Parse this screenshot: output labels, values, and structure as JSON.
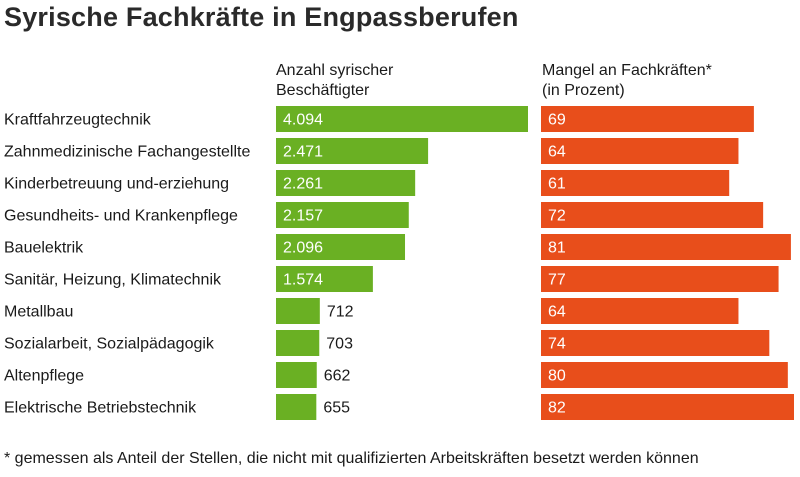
{
  "title": "Syrische Fachkräfte in Engpassberufen",
  "footnote": "* gemessen als Anteil der Stellen, die nicht mit qualifizierten Arbeitskräften besetzt werden können",
  "colors": {
    "left": "#6ab023",
    "right": "#e84e1b"
  },
  "chart_data": {
    "type": "bar",
    "categories": [
      "Kraftfahrzeugtechnik",
      "Zahnmedizinische Fachangestellte",
      "Kinderbetreuung und-erziehung",
      "Gesundheits- und Krankenpflege",
      "Bauelektrik",
      "Sanitär, Heizung, Klimatechnik",
      "Metallbau",
      "Sozialarbeit, Sozialpädagogik",
      "Altenpflege",
      "Elektrische Betriebstechnik"
    ],
    "series": [
      {
        "name_lines": [
          "Anzahl syrischer",
          "Beschäftigter"
        ],
        "values": [
          4094,
          2471,
          2261,
          2157,
          2096,
          1574,
          712,
          703,
          662,
          655
        ],
        "labels": [
          "4.094",
          "2.471",
          "2.261",
          "2.157",
          "2.096",
          "1.574",
          "712",
          "703",
          "662",
          "655"
        ],
        "max": 4094
      },
      {
        "name_lines": [
          "Mangel an Fachkräften*",
          "(in Prozent)"
        ],
        "values": [
          69,
          64,
          61,
          72,
          81,
          77,
          64,
          74,
          80,
          82
        ],
        "labels": [
          "69",
          "64",
          "61",
          "72",
          "81",
          "77",
          "64",
          "74",
          "80",
          "82"
        ],
        "max": 82
      }
    ]
  }
}
